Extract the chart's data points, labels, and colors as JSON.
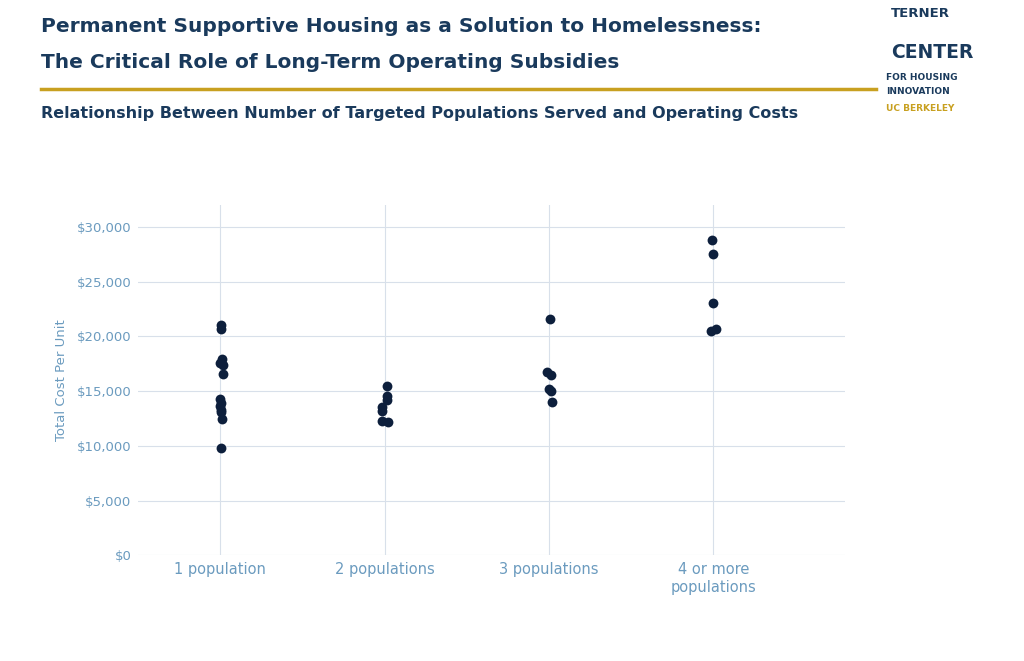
{
  "title_line1": "Permanent Supportive Housing as a Solution to Homelessness:",
  "title_line2": "The Critical Role of Long-Term Operating Subsidies",
  "subtitle": "Relationship Between Number of Targeted Populations Served and Operating Costs",
  "ylabel": "Total Cost Per Unit",
  "background_color": "#ffffff",
  "title_color": "#1a3a5c",
  "subtitle_color": "#1a3a5c",
  "axis_label_color": "#6b9bbf",
  "dot_color": "#0d1f3c",
  "grid_color": "#d8e0ea",
  "categories": [
    "1 population",
    "2 populations",
    "3 populations",
    "4 or more\npopulations"
  ],
  "x_positions": [
    1,
    2,
    3,
    4
  ],
  "data": {
    "1": [
      9800,
      12400,
      13100,
      13300,
      13600,
      13900,
      14300,
      16600,
      17400,
      17600,
      17900,
      20700,
      21000
    ],
    "2": [
      12200,
      12300,
      13200,
      13500,
      14200,
      14500,
      15500
    ],
    "3": [
      14000,
      15000,
      15200,
      16500,
      16700,
      21600
    ],
    "4": [
      20500,
      20700,
      23000,
      27500,
      28800
    ]
  },
  "ylim": [
    0,
    32000
  ],
  "yticks": [
    0,
    5000,
    10000,
    15000,
    20000,
    25000,
    30000
  ],
  "ytick_labels": [
    "$0",
    "$5,000",
    "$10,000",
    "$15,000",
    "$20,000",
    "$25,000",
    "$30,000"
  ],
  "separator_color": "#c8a020",
  "logo_color": "#1a3a5c",
  "logo_uc_color": "#c8a020"
}
